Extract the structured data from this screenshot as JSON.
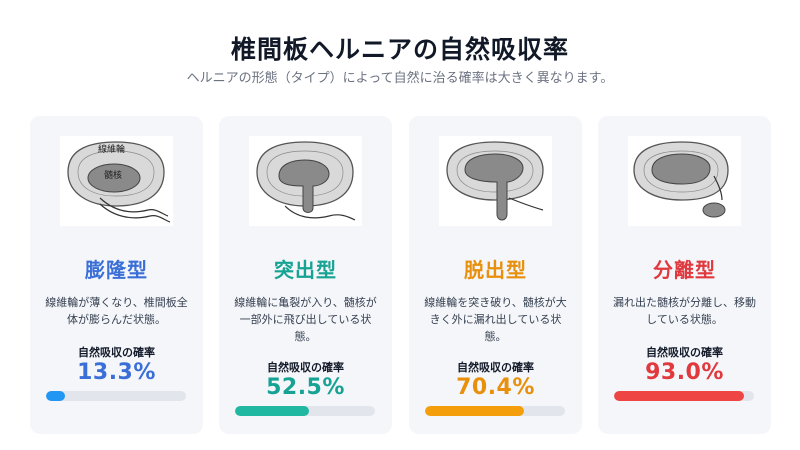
{
  "header": {
    "title": "椎間板ヘルニアの自然吸収率",
    "subtitle": "ヘルニアの形態（タイプ）によって自然に治る確率は大きく異なります。"
  },
  "rate_label": "自然吸収の確率",
  "diagram_labels": {
    "annulus": "線維輪",
    "nucleus": "髄核"
  },
  "cards": [
    {
      "name": "膨隆型",
      "desc": "線維輪が薄くなり、椎間板全体が膨らんだ状態。",
      "rate": "13.3%",
      "fraction": 0.133,
      "color": "#3b6fd8",
      "bar_color": "#2196f3"
    },
    {
      "name": "突出型",
      "desc": "線維輪に亀裂が入り、髄核が一部外に飛び出している状態。",
      "rate": "52.5%",
      "fraction": 0.525,
      "color": "#16a394",
      "bar_color": "#20b8a0"
    },
    {
      "name": "脱出型",
      "desc": "線維輪を突き破り、髄核が大きく外に漏れ出している状態。",
      "rate": "70.4%",
      "fraction": 0.704,
      "color": "#e8900c",
      "bar_color": "#f59e0b"
    },
    {
      "name": "分離型",
      "desc": "漏れ出た髄核が分離し、移動している状態。",
      "rate": "93.0%",
      "fraction": 0.93,
      "color": "#e0393e",
      "bar_color": "#ef4444"
    }
  ]
}
